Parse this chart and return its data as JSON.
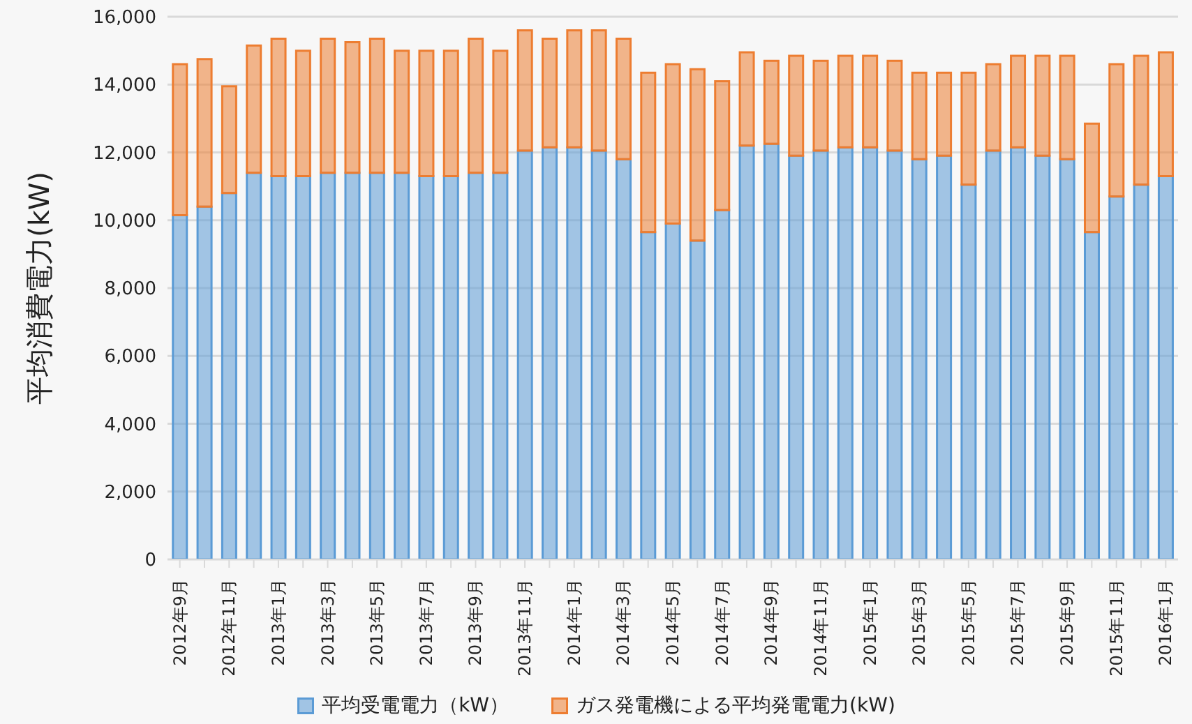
{
  "chart_data": {
    "type": "bar",
    "stacked": true,
    "ylabel": "平均消費電力(kW)",
    "categories": [
      "2012年9月",
      null,
      "2012年11月",
      null,
      "2013年1月",
      null,
      "2013年3月",
      null,
      "2013年5月",
      null,
      "2013年7月",
      null,
      "2013年9月",
      null,
      "2013年11月",
      null,
      "2014年1月",
      null,
      "2014年3月",
      null,
      "2014年5月",
      null,
      "2014年7月",
      null,
      "2014年9月",
      null,
      "2014年11月",
      null,
      "2015年1月",
      null,
      "2015年3月",
      null,
      "2015年5月",
      null,
      "2015年7月",
      null,
      "2015年9月",
      null,
      "2015年11月",
      null,
      "2016年1月"
    ],
    "series": [
      {
        "name": "平均受電電力（kW）",
        "color": "#5b9bd5",
        "values": [
          10150,
          10400,
          10800,
          11400,
          11300,
          11300,
          11400,
          11400,
          11400,
          11400,
          11300,
          11300,
          11400,
          11400,
          12050,
          12150,
          12150,
          12050,
          11800,
          9650,
          9900,
          9400,
          10300,
          12200,
          12250,
          11900,
          12050,
          12150,
          12150,
          12050,
          11800,
          11900,
          11050,
          12050,
          12150,
          11900,
          11800,
          9650,
          10700,
          11050,
          11300
        ]
      },
      {
        "name": "ガス発電機による平均発電電力(kW)",
        "color": "#ed7d31",
        "values": [
          4450,
          4350,
          3150,
          3750,
          4050,
          3700,
          3950,
          3850,
          3950,
          3600,
          3700,
          3700,
          3950,
          3600,
          3550,
          3200,
          3450,
          3550,
          3550,
          4700,
          4700,
          5050,
          3800,
          2750,
          2450,
          2950,
          2650,
          2700,
          2700,
          2650,
          2550,
          2450,
          3300,
          2550,
          2700,
          2950,
          3050,
          3200,
          3900,
          3800,
          3650
        ]
      }
    ],
    "ylim": [
      0,
      16000
    ],
    "yticks": [
      0,
      {
        "value": 2000,
        "label": "2,000"
      },
      {
        "value": 4000,
        "label": "4,000"
      },
      {
        "value": 6000,
        "label": "6,000"
      },
      {
        "value": 8000,
        "label": "8,000"
      },
      {
        "value": 10000,
        "label": "10,000"
      },
      {
        "value": 12000,
        "label": "12,000"
      },
      {
        "value": 14000,
        "label": "14,000"
      },
      {
        "value": 16000,
        "label": "16,000"
      }
    ],
    "grid": "y",
    "legend": "bottom"
  }
}
